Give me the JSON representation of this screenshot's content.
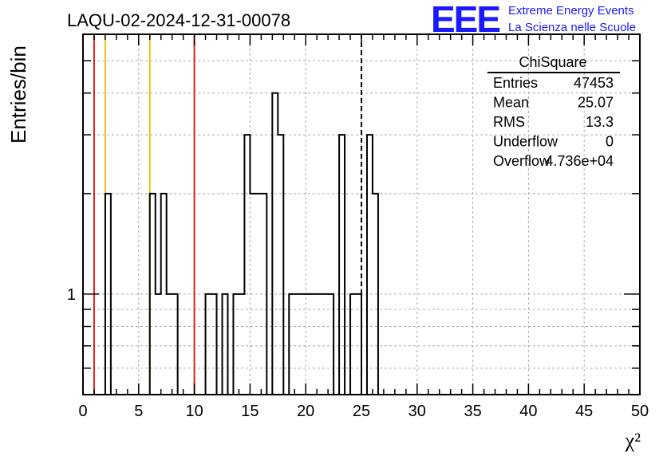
{
  "header": {
    "title": "LAQU-02-2024-12-31-00078",
    "logo_text": "EEE",
    "logo_line1": "Extreme Energy Events",
    "logo_line2": "La Scienza nelle Scuole"
  },
  "stats": {
    "name": "ChiSquare",
    "rows": [
      {
        "label": "Entries",
        "value": "47453"
      },
      {
        "label": "Mean",
        "value": "25.07"
      },
      {
        "label": "RMS",
        "value": "13.3"
      },
      {
        "label": "Underflow",
        "value": "0"
      },
      {
        "label": "Overflow",
        "value": "4.736e+04"
      }
    ]
  },
  "chart_data": {
    "type": "histogram",
    "title": "LAQU-02-2024-12-31-00078",
    "xlabel": "χ²",
    "ylabel": "Entries/bin",
    "xlim": [
      0,
      50
    ],
    "ylim": [
      0.5,
      6
    ],
    "yscale": "log",
    "grid": true,
    "bin_width": 0.5,
    "x_ticks": [
      0,
      5,
      10,
      15,
      20,
      25,
      30,
      35,
      40,
      45,
      50
    ],
    "y_tick_labels": [
      1
    ],
    "bin_counts": [
      0,
      0,
      0,
      0,
      2,
      0,
      0,
      0,
      0,
      0,
      0,
      0,
      2,
      1,
      2,
      1,
      1,
      0,
      0,
      0,
      0,
      0,
      1,
      1,
      0,
      1,
      0,
      1,
      1,
      3,
      2,
      2,
      2,
      0,
      4,
      3,
      0,
      1,
      1,
      1,
      1,
      1,
      1,
      1,
      1,
      0,
      3,
      0,
      1,
      1,
      0,
      3,
      2,
      0,
      0,
      0,
      0,
      0,
      0,
      0,
      0,
      0,
      0,
      0,
      0,
      0,
      0,
      0,
      0,
      0,
      0,
      0,
      0,
      0,
      0,
      0,
      0,
      0,
      0,
      0,
      0,
      0,
      0,
      0,
      0,
      0,
      0,
      0,
      0,
      0,
      0,
      0,
      0,
      0,
      0,
      0,
      0,
      0,
      0,
      0
    ],
    "vertical_lines": [
      {
        "x": 1,
        "color": "#e0201b"
      },
      {
        "x": 2,
        "color": "#f2c012"
      },
      {
        "x": 6,
        "color": "#f2c012"
      },
      {
        "x": 10,
        "color": "#e0201b"
      },
      {
        "x": 25,
        "color": "#000000",
        "style": "dashed"
      }
    ]
  }
}
